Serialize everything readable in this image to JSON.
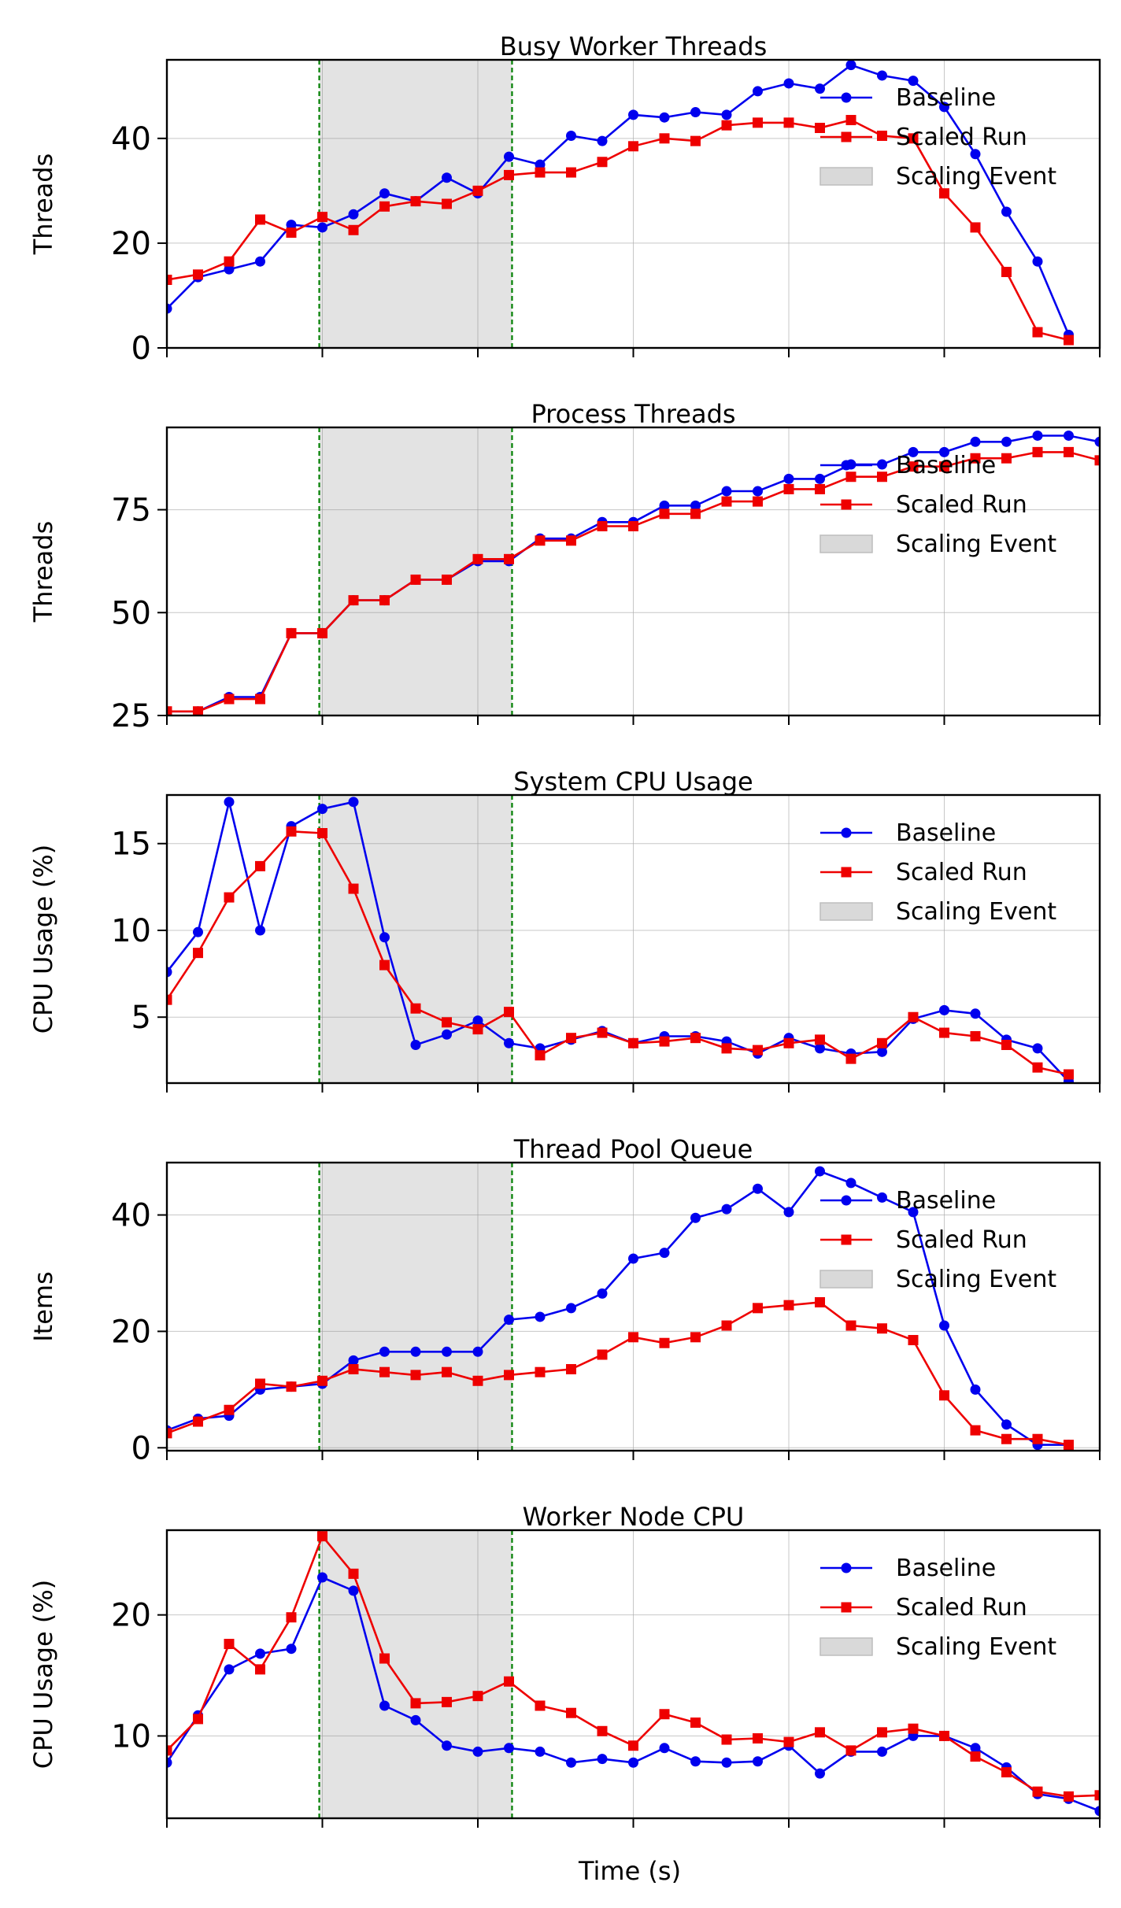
{
  "figure": {
    "xlabel": "Time (s)"
  },
  "colors": {
    "baseline": "#0000ee",
    "scaled": "#ee0000",
    "scaling_lines": "#008000",
    "scaling_span": "#808080"
  },
  "chart_data": [
    {
      "type": "line",
      "title": "Busy Worker Threads",
      "ylabel": "Threads",
      "xlim": [
        0,
        30
      ],
      "ylim": [
        0,
        55
      ],
      "yticks": [
        0,
        20,
        40
      ],
      "xticks": [
        0,
        5,
        10,
        15,
        20,
        25,
        30
      ],
      "grid": true,
      "legend": "upper right",
      "scaling_event": [
        4.9,
        11.1
      ],
      "series": [
        {
          "name": "Baseline",
          "marker": "circle",
          "x": [
            0,
            1,
            2,
            3,
            4,
            5,
            6,
            7,
            8,
            9,
            10,
            11,
            12,
            13,
            14,
            15,
            16,
            17,
            18,
            19,
            20,
            21,
            22,
            23,
            24,
            25,
            26,
            27,
            28,
            29
          ],
          "values": [
            7.5,
            13.5,
            15,
            16.5,
            23.5,
            23,
            25.5,
            29.5,
            28,
            32.5,
            29.5,
            36.5,
            35,
            40.5,
            39.5,
            44.5,
            44,
            45,
            44.5,
            49,
            50.5,
            49.5,
            54,
            52,
            51,
            46,
            37,
            26,
            16.5,
            2.5
          ]
        },
        {
          "name": "Scaled Run",
          "marker": "square",
          "x": [
            0,
            1,
            2,
            3,
            4,
            5,
            6,
            7,
            8,
            9,
            10,
            11,
            12,
            13,
            14,
            15,
            16,
            17,
            18,
            19,
            20,
            21,
            22,
            23,
            24,
            25,
            26,
            27,
            28,
            29
          ],
          "values": [
            13,
            14,
            16.5,
            24.5,
            22,
            25,
            22.5,
            27,
            28,
            27.5,
            30,
            33,
            33.5,
            33.5,
            35.5,
            38.5,
            40,
            39.5,
            42.5,
            43,
            43,
            42,
            43.5,
            40.5,
            40,
            29.5,
            23,
            14.5,
            3,
            1.5
          ]
        }
      ],
      "legend_entries": [
        "Baseline",
        "Scaled Run",
        "Scaling Event"
      ]
    },
    {
      "type": "line",
      "title": "Process Threads",
      "ylabel": "Threads",
      "xlim": [
        0,
        30
      ],
      "ylim": [
        25,
        95
      ],
      "yticks": [
        25,
        50,
        75
      ],
      "xticks": [
        0,
        5,
        10,
        15,
        20,
        25,
        30
      ],
      "grid": true,
      "legend": "upper right",
      "scaling_event": [
        4.9,
        11.1
      ],
      "series": [
        {
          "name": "Baseline",
          "marker": "circle",
          "x": [
            0,
            1,
            2,
            3,
            4,
            5,
            6,
            7,
            8,
            9,
            10,
            11,
            12,
            13,
            14,
            15,
            16,
            17,
            18,
            19,
            20,
            21,
            22,
            23,
            24,
            25,
            26,
            27,
            28,
            29,
            30
          ],
          "values": [
            26,
            26,
            29.5,
            29.5,
            45,
            45,
            53,
            53,
            58,
            58,
            62.5,
            62.5,
            68,
            68,
            72,
            72,
            76,
            76,
            79.5,
            79.5,
            82.5,
            82.5,
            86,
            86,
            89,
            89,
            91.5,
            91.5,
            93,
            93,
            91.5
          ]
        },
        {
          "name": "Scaled Run",
          "marker": "square",
          "x": [
            0,
            1,
            2,
            3,
            4,
            5,
            6,
            7,
            8,
            9,
            10,
            11,
            12,
            13,
            14,
            15,
            16,
            17,
            18,
            19,
            20,
            21,
            22,
            23,
            24,
            25,
            26,
            27,
            28,
            29,
            30
          ],
          "values": [
            26,
            26,
            29,
            29,
            45,
            45,
            53,
            53,
            58,
            58,
            63,
            63,
            67.5,
            67.5,
            71,
            71,
            74,
            74,
            77,
            77,
            80,
            80,
            83,
            83,
            85.5,
            85.5,
            87.5,
            87.5,
            89,
            89,
            87
          ]
        }
      ],
      "legend_entries": [
        "Baseline",
        "Scaled Run",
        "Scaling Event"
      ]
    },
    {
      "type": "line",
      "title": "System CPU Usage",
      "ylabel": "CPU Usage (%)",
      "xlim": [
        0,
        30
      ],
      "ylim": [
        1.2,
        17.8
      ],
      "yticks": [
        5,
        10,
        15
      ],
      "xticks": [
        0,
        5,
        10,
        15,
        20,
        25,
        30
      ],
      "grid": true,
      "legend": "upper right",
      "scaling_event": [
        4.9,
        11.1
      ],
      "series": [
        {
          "name": "Baseline",
          "marker": "circle",
          "x": [
            0,
            1,
            2,
            3,
            4,
            5,
            6,
            7,
            8,
            9,
            10,
            11,
            12,
            13,
            14,
            15,
            16,
            17,
            18,
            19,
            20,
            21,
            22,
            23,
            24,
            25,
            26,
            27,
            28,
            29
          ],
          "values": [
            7.6,
            9.9,
            17.4,
            10,
            16,
            17,
            17.4,
            9.6,
            3.4,
            4,
            4.8,
            3.5,
            3.2,
            3.7,
            4.2,
            3.5,
            3.9,
            3.9,
            3.6,
            2.9,
            3.8,
            3.2,
            2.9,
            3,
            4.9,
            5.4,
            5.2,
            3.7,
            3.2,
            1.3
          ]
        },
        {
          "name": "Scaled Run",
          "marker": "square",
          "x": [
            0,
            1,
            2,
            3,
            4,
            5,
            6,
            7,
            8,
            9,
            10,
            11,
            12,
            13,
            14,
            15,
            16,
            17,
            18,
            19,
            20,
            21,
            22,
            23,
            24,
            25,
            26,
            27,
            28,
            29
          ],
          "values": [
            6,
            8.7,
            11.9,
            13.7,
            15.7,
            15.6,
            12.4,
            8,
            5.5,
            4.7,
            4.3,
            5.3,
            2.8,
            3.8,
            4.1,
            3.5,
            3.6,
            3.8,
            3.2,
            3.1,
            3.5,
            3.7,
            2.6,
            3.5,
            5,
            4.1,
            3.9,
            3.4,
            2.1,
            1.7
          ]
        }
      ],
      "legend_entries": [
        "Baseline",
        "Scaled Run",
        "Scaling Event"
      ]
    },
    {
      "type": "line",
      "title": "Thread Pool Queue",
      "ylabel": "Items",
      "xlim": [
        0,
        30
      ],
      "ylim": [
        -0.5,
        49
      ],
      "yticks": [
        0,
        20,
        40
      ],
      "xticks": [
        0,
        5,
        10,
        15,
        20,
        25,
        30
      ],
      "grid": true,
      "legend": "upper right",
      "scaling_event": [
        4.9,
        11.1
      ],
      "series": [
        {
          "name": "Baseline",
          "marker": "circle",
          "x": [
            0,
            1,
            2,
            3,
            4,
            5,
            6,
            7,
            8,
            9,
            10,
            11,
            12,
            13,
            14,
            15,
            16,
            17,
            18,
            19,
            20,
            21,
            22,
            23,
            24,
            25,
            26,
            27,
            28,
            29
          ],
          "values": [
            3,
            5,
            5.5,
            10,
            10.5,
            11,
            15,
            16.5,
            16.5,
            16.5,
            16.5,
            22,
            22.5,
            24,
            26.5,
            32.5,
            33.5,
            39.5,
            41,
            44.5,
            40.5,
            47.5,
            45.5,
            43,
            40.5,
            21,
            10,
            4,
            0.5,
            0.5
          ]
        },
        {
          "name": "Scaled Run",
          "marker": "square",
          "x": [
            0,
            1,
            2,
            3,
            4,
            5,
            6,
            7,
            8,
            9,
            10,
            11,
            12,
            13,
            14,
            15,
            16,
            17,
            18,
            19,
            20,
            21,
            22,
            23,
            24,
            25,
            26,
            27,
            28,
            29
          ],
          "values": [
            2.5,
            4.5,
            6.5,
            11,
            10.5,
            11.5,
            13.5,
            13,
            12.5,
            13,
            11.5,
            12.5,
            13,
            13.5,
            16,
            19,
            18,
            19,
            21,
            24,
            24.5,
            25,
            21,
            20.5,
            18.5,
            9,
            3,
            1.5,
            1.5,
            0.5
          ]
        }
      ],
      "legend_entries": [
        "Baseline",
        "Scaled Run",
        "Scaling Event"
      ]
    },
    {
      "type": "line",
      "title": "Worker Node CPU",
      "ylabel": "CPU Usage (%)",
      "xlim": [
        0,
        30
      ],
      "ylim": [
        3.2,
        27
      ],
      "yticks": [
        10,
        20
      ],
      "xticks": [
        0,
        5,
        10,
        15,
        20,
        25,
        30
      ],
      "grid": true,
      "legend": "upper right",
      "scaling_event": [
        4.9,
        11.1
      ],
      "series": [
        {
          "name": "Baseline",
          "marker": "circle",
          "x": [
            0,
            1,
            2,
            3,
            4,
            5,
            6,
            7,
            8,
            9,
            10,
            11,
            12,
            13,
            14,
            15,
            16,
            17,
            18,
            19,
            20,
            21,
            22,
            23,
            24,
            25,
            26,
            27,
            28,
            29,
            30
          ],
          "values": [
            7.8,
            11.7,
            15.5,
            16.8,
            17.2,
            23.1,
            22,
            12.5,
            11.3,
            9.2,
            8.7,
            9,
            8.7,
            7.8,
            8.1,
            7.8,
            9,
            7.9,
            7.8,
            7.9,
            9.2,
            6.9,
            8.7,
            8.7,
            10,
            10,
            9,
            7.4,
            5.2,
            4.8,
            3.8
          ]
        },
        {
          "name": "Scaled Run",
          "marker": "square",
          "x": [
            0,
            1,
            2,
            3,
            4,
            5,
            6,
            7,
            8,
            9,
            10,
            11,
            12,
            13,
            14,
            15,
            16,
            17,
            18,
            19,
            20,
            21,
            22,
            23,
            24,
            25,
            26,
            27,
            28,
            29,
            30
          ],
          "values": [
            8.8,
            11.4,
            17.6,
            15.5,
            19.8,
            26.5,
            23.4,
            16.4,
            12.7,
            12.8,
            13.3,
            14.5,
            12.5,
            11.9,
            10.4,
            9.2,
            11.8,
            11.1,
            9.7,
            9.8,
            9.5,
            10.3,
            8.8,
            10.3,
            10.6,
            10,
            8.3,
            7,
            5.4,
            5,
            5.1
          ]
        }
      ],
      "legend_entries": [
        "Baseline",
        "Scaled Run",
        "Scaling Event"
      ]
    }
  ]
}
